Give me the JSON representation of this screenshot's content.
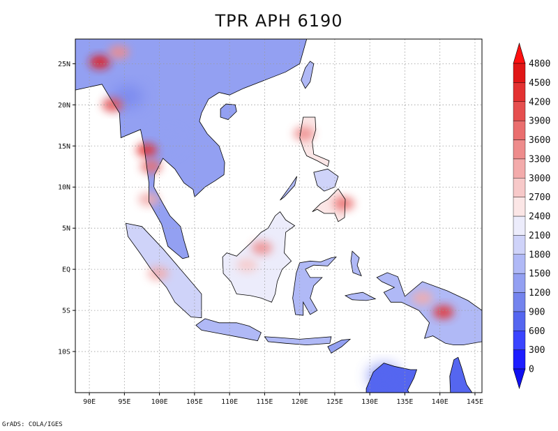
{
  "title": "TPR APH 6190",
  "footer": "GrADS: COLA/IGES",
  "map": {
    "lon_range": [
      88,
      146
    ],
    "lat_range": [
      -15,
      28
    ],
    "lon_ticks": [
      {
        "value": 90,
        "label": "90E"
      },
      {
        "value": 95,
        "label": "95E"
      },
      {
        "value": 100,
        "label": "100E"
      },
      {
        "value": 105,
        "label": "105E"
      },
      {
        "value": 110,
        "label": "110E"
      },
      {
        "value": 115,
        "label": "115E"
      },
      {
        "value": 120,
        "label": "120E"
      },
      {
        "value": 125,
        "label": "125E"
      },
      {
        "value": 130,
        "label": "130E"
      },
      {
        "value": 135,
        "label": "135E"
      },
      {
        "value": 140,
        "label": "140E"
      },
      {
        "value": 145,
        "label": "145E"
      }
    ],
    "lat_ticks": [
      {
        "value": 25,
        "label": "25N"
      },
      {
        "value": 20,
        "label": "20N"
      },
      {
        "value": 15,
        "label": "15N"
      },
      {
        "value": 10,
        "label": "10N"
      },
      {
        "value": 5,
        "label": "5N"
      },
      {
        "value": 0,
        "label": "EQ"
      },
      {
        "value": -5,
        "label": "5S"
      },
      {
        "value": -10,
        "label": "10S"
      }
    ],
    "grid": true,
    "land_regions": [
      {
        "name": "mainland",
        "level": 1200,
        "points": [
          [
            88,
            28
          ],
          [
            121,
            28
          ],
          [
            120,
            25
          ],
          [
            118,
            24
          ],
          [
            115,
            23
          ],
          [
            112,
            22
          ],
          [
            110,
            21.2
          ],
          [
            108.5,
            21.5
          ],
          [
            107,
            20.7
          ],
          [
            106,
            19
          ],
          [
            105.7,
            18
          ],
          [
            106.8,
            16.5
          ],
          [
            108.5,
            15
          ],
          [
            109.3,
            13
          ],
          [
            109.2,
            11.5
          ],
          [
            108,
            10.8
          ],
          [
            106.5,
            10
          ],
          [
            105,
            8.8
          ],
          [
            104.8,
            9.7
          ],
          [
            103.5,
            10.5
          ],
          [
            102.2,
            12.2
          ],
          [
            100.5,
            13.5
          ],
          [
            99.3,
            11.5
          ],
          [
            99.2,
            10
          ],
          [
            100.5,
            8
          ],
          [
            101.5,
            6.5
          ],
          [
            103,
            5.2
          ],
          [
            103.5,
            3.5
          ],
          [
            104.2,
            1.5
          ],
          [
            103.3,
            1.3
          ],
          [
            101.2,
            2.8
          ],
          [
            100.3,
            5.5
          ],
          [
            98.5,
            8.2
          ],
          [
            98.5,
            10.5
          ],
          [
            97.8,
            15
          ],
          [
            97.3,
            17
          ],
          [
            94.5,
            16
          ],
          [
            94.3,
            19
          ],
          [
            92.5,
            21.5
          ],
          [
            91.8,
            22.5
          ],
          [
            88,
            21.8
          ]
        ]
      },
      {
        "name": "hainan",
        "level": 1200,
        "points": [
          [
            108.7,
            19.5
          ],
          [
            109.5,
            20.1
          ],
          [
            110.8,
            20
          ],
          [
            111,
            19.2
          ],
          [
            109.8,
            18.2
          ],
          [
            108.7,
            18.5
          ]
        ]
      },
      {
        "name": "taiwan",
        "level": 1500,
        "points": [
          [
            121.5,
            25.3
          ],
          [
            122,
            25
          ],
          [
            121.5,
            22.8
          ],
          [
            120.8,
            22
          ],
          [
            120.2,
            23
          ],
          [
            120.8,
            24.5
          ]
        ]
      },
      {
        "name": "sumatra",
        "level": 1800,
        "points": [
          [
            95.2,
            5.6
          ],
          [
            97.5,
            5.2
          ],
          [
            100.5,
            2.5
          ],
          [
            103,
            0
          ],
          [
            104.5,
            -1.5
          ],
          [
            106,
            -3
          ],
          [
            106,
            -5.9
          ],
          [
            104.5,
            -5.8
          ],
          [
            102.2,
            -4
          ],
          [
            101,
            -2.2
          ],
          [
            98.8,
            0
          ],
          [
            97.2,
            2
          ],
          [
            95.5,
            4
          ]
        ]
      },
      {
        "name": "java",
        "level": 1500,
        "points": [
          [
            105.2,
            -6.8
          ],
          [
            106.5,
            -6
          ],
          [
            108.5,
            -6.5
          ],
          [
            111,
            -6.5
          ],
          [
            112.8,
            -6.9
          ],
          [
            114.5,
            -7.7
          ],
          [
            114,
            -8.7
          ],
          [
            111,
            -8.2
          ],
          [
            108.5,
            -7.8
          ],
          [
            106,
            -7.4
          ]
        ]
      },
      {
        "name": "lesser-sunda",
        "level": 1500,
        "points": [
          [
            115,
            -8.2
          ],
          [
            117,
            -8.3
          ],
          [
            120,
            -8.5
          ],
          [
            123,
            -8.3
          ],
          [
            124.5,
            -8.2
          ],
          [
            124.3,
            -9
          ],
          [
            121,
            -9.2
          ],
          [
            118,
            -9
          ],
          [
            115.5,
            -8.8
          ]
        ]
      },
      {
        "name": "timor",
        "level": 1200,
        "points": [
          [
            124,
            -9.4
          ],
          [
            126,
            -8.6
          ],
          [
            127.2,
            -8.5
          ],
          [
            126,
            -9.4
          ],
          [
            124.5,
            -10.2
          ]
        ]
      },
      {
        "name": "borneo",
        "level": 2100,
        "points": [
          [
            109,
            1.5
          ],
          [
            109.6,
            2
          ],
          [
            111,
            1.6
          ],
          [
            113,
            3.2
          ],
          [
            114.5,
            4.5
          ],
          [
            115.5,
            5
          ],
          [
            116.5,
            6.5
          ],
          [
            117.2,
            7
          ],
          [
            118,
            6
          ],
          [
            119.3,
            5.3
          ],
          [
            118,
            4.5
          ],
          [
            117.8,
            2
          ],
          [
            118.8,
            1
          ],
          [
            117.5,
            0
          ],
          [
            116.8,
            -1.5
          ],
          [
            116.5,
            -3
          ],
          [
            116,
            -4
          ],
          [
            114.5,
            -3.5
          ],
          [
            113,
            -3.2
          ],
          [
            111,
            -3
          ],
          [
            110.2,
            -1.5
          ],
          [
            109.1,
            -0.5
          ]
        ]
      },
      {
        "name": "sulawesi",
        "level": 1500,
        "points": [
          [
            119,
            -3.5
          ],
          [
            119.5,
            -0.5
          ],
          [
            120,
            0.8
          ],
          [
            121.5,
            1
          ],
          [
            123,
            0.9
          ],
          [
            124.5,
            1.4
          ],
          [
            125.2,
            1.5
          ],
          [
            124,
            0.4
          ],
          [
            122,
            0.5
          ],
          [
            120.8,
            0
          ],
          [
            121.5,
            -1
          ],
          [
            123.2,
            -1
          ],
          [
            122,
            -2
          ],
          [
            121.5,
            -3.5
          ],
          [
            122.5,
            -5
          ],
          [
            121.5,
            -5.5
          ],
          [
            120.5,
            -4
          ],
          [
            120.5,
            -5.6
          ],
          [
            119.4,
            -5.5
          ]
        ]
      },
      {
        "name": "luzon",
        "level": 2400,
        "points": [
          [
            120.5,
            18.5
          ],
          [
            122.2,
            18.5
          ],
          [
            122.3,
            17
          ],
          [
            121.8,
            15.5
          ],
          [
            122,
            14
          ],
          [
            124.2,
            13.2
          ],
          [
            124,
            12.5
          ],
          [
            122.5,
            13.2
          ],
          [
            121,
            13.8
          ],
          [
            120.6,
            14.5
          ],
          [
            120,
            16
          ],
          [
            120.3,
            17.5
          ]
        ]
      },
      {
        "name": "mindanao",
        "level": 2400,
        "points": [
          [
            121.8,
            7
          ],
          [
            123,
            8
          ],
          [
            124,
            8.5
          ],
          [
            125.5,
            9.8
          ],
          [
            126.5,
            8.5
          ],
          [
            126.4,
            6.3
          ],
          [
            125.5,
            5.8
          ],
          [
            125,
            6.8
          ],
          [
            123.5,
            6.8
          ],
          [
            122.5,
            7.3
          ]
        ]
      },
      {
        "name": "visayas",
        "level": 1800,
        "points": [
          [
            122,
            11.8
          ],
          [
            124,
            12.2
          ],
          [
            125.5,
            11.3
          ],
          [
            125,
            10
          ],
          [
            123.5,
            9.5
          ],
          [
            122.5,
            10.2
          ]
        ]
      },
      {
        "name": "palawan",
        "level": 1500,
        "points": [
          [
            117.2,
            8.4
          ],
          [
            118.8,
            10.3
          ],
          [
            119.6,
            11.3
          ],
          [
            119.3,
            10.2
          ],
          [
            117.8,
            8.8
          ]
        ]
      },
      {
        "name": "halmahera",
        "level": 1500,
        "points": [
          [
            127.5,
            2.2
          ],
          [
            128.5,
            1.4
          ],
          [
            128.2,
            0.5
          ],
          [
            128.8,
            -0.8
          ],
          [
            127.6,
            -0.4
          ],
          [
            127.3,
            1
          ]
        ]
      },
      {
        "name": "seram",
        "level": 1500,
        "points": [
          [
            126.5,
            -3.2
          ],
          [
            127.5,
            -3
          ],
          [
            129,
            -2.8
          ],
          [
            130.8,
            -3.6
          ],
          [
            129.5,
            -3.8
          ],
          [
            127.5,
            -3.7
          ]
        ]
      },
      {
        "name": "new-guinea",
        "level": 1500,
        "points": [
          [
            131,
            -1
          ],
          [
            132.5,
            -0.4
          ],
          [
            134,
            -0.9
          ],
          [
            135,
            -3.3
          ],
          [
            137.5,
            -1.5
          ],
          [
            141,
            -2.6
          ],
          [
            144,
            -3.8
          ],
          [
            146,
            -5
          ],
          [
            146,
            -8.8
          ],
          [
            143.3,
            -9.2
          ],
          [
            142,
            -9.2
          ],
          [
            140.8,
            -9
          ],
          [
            139,
            -8.1
          ],
          [
            137.8,
            -8.4
          ],
          [
            138.5,
            -6.5
          ],
          [
            137,
            -5
          ],
          [
            134.5,
            -4
          ],
          [
            133,
            -4
          ],
          [
            132,
            -2.8
          ],
          [
            133.5,
            -2.2
          ],
          [
            131.7,
            -1.5
          ]
        ]
      },
      {
        "name": "northern-australia",
        "level": 600,
        "points": [
          [
            129.5,
            -15
          ],
          [
            129.5,
            -14.5
          ],
          [
            130.5,
            -12.5
          ],
          [
            132,
            -11.4
          ],
          [
            133.5,
            -11.8
          ],
          [
            135.8,
            -12.2
          ],
          [
            136.7,
            -12.2
          ],
          [
            136.3,
            -13.2
          ],
          [
            135.4,
            -14.7
          ],
          [
            135.6,
            -15
          ],
          [
            136.5,
            -15
          ]
        ]
      },
      {
        "name": "cape-york",
        "level": 600,
        "points": [
          [
            141.5,
            -15
          ],
          [
            141.4,
            -13
          ],
          [
            142,
            -11
          ],
          [
            142.6,
            -10.7
          ],
          [
            143.1,
            -12
          ],
          [
            143.8,
            -14
          ],
          [
            144.6,
            -15
          ]
        ]
      }
    ],
    "precip_hotspots": [
      {
        "region": "bangladesh-meghalaya",
        "lon": 91.5,
        "lat": 25.2,
        "value": 4800
      },
      {
        "region": "northeast-india",
        "lon": 94.2,
        "lat": 26.4,
        "value": 3300
      },
      {
        "region": "arakan-coast",
        "lon": 93.3,
        "lat": 20,
        "value": 3900
      },
      {
        "region": "tenasserim-coast",
        "lon": 98.2,
        "lat": 14.5,
        "value": 4200
      },
      {
        "region": "tenasserim-south",
        "lon": 98.8,
        "lat": 12.5,
        "value": 3600
      },
      {
        "region": "central-borneo",
        "lon": 114.6,
        "lat": 2.6,
        "value": 3300
      },
      {
        "region": "west-borneo",
        "lon": 112.5,
        "lat": 0.5,
        "value": 2700
      },
      {
        "region": "new-guinea-highlands",
        "lon": 140.5,
        "lat": -5.2,
        "value": 4200
      },
      {
        "region": "new-guinea-north",
        "lon": 137.5,
        "lat": -3.5,
        "value": 3000
      },
      {
        "region": "eastern-philippines",
        "lon": 126.3,
        "lat": 8,
        "value": 3600
      },
      {
        "region": "western-luzon",
        "lon": 120.6,
        "lat": 16.5,
        "value": 3300
      },
      {
        "region": "west-sumatra",
        "lon": 99.8,
        "lat": -0.5,
        "value": 3000
      },
      {
        "region": "south-india-coast",
        "lon": 98.5,
        "lat": 8.5,
        "value": 3000
      }
    ],
    "dry_spots": [
      {
        "region": "central-myanmar",
        "lon": 95.5,
        "lat": 21,
        "value": 900
      },
      {
        "region": "central-thailand",
        "lon": 101,
        "lat": 15.5,
        "value": 1200
      },
      {
        "region": "northern-australia",
        "lon": 132,
        "lat": -13,
        "value": 600
      }
    ]
  },
  "colorbar": {
    "levels": [
      "0",
      "300",
      "600",
      "900",
      "1200",
      "1500",
      "1800",
      "2100",
      "2400",
      "2700",
      "3000",
      "3300",
      "3600",
      "3900",
      "4200",
      "4500",
      "4800"
    ],
    "colors": [
      "#1d1dff",
      "#3a44ff",
      "#5566f0",
      "#7484ee",
      "#93a0f2",
      "#b0b9f6",
      "#cfd3f9",
      "#ececfb",
      "#fbe6e6",
      "#f7c9c9",
      "#f3abab",
      "#ee8c8c",
      "#ea6e6e",
      "#e64f4f",
      "#e33131",
      "#e01616"
    ],
    "arrow_low_color": "#1010f0",
    "arrow_high_color": "#ff1010"
  }
}
